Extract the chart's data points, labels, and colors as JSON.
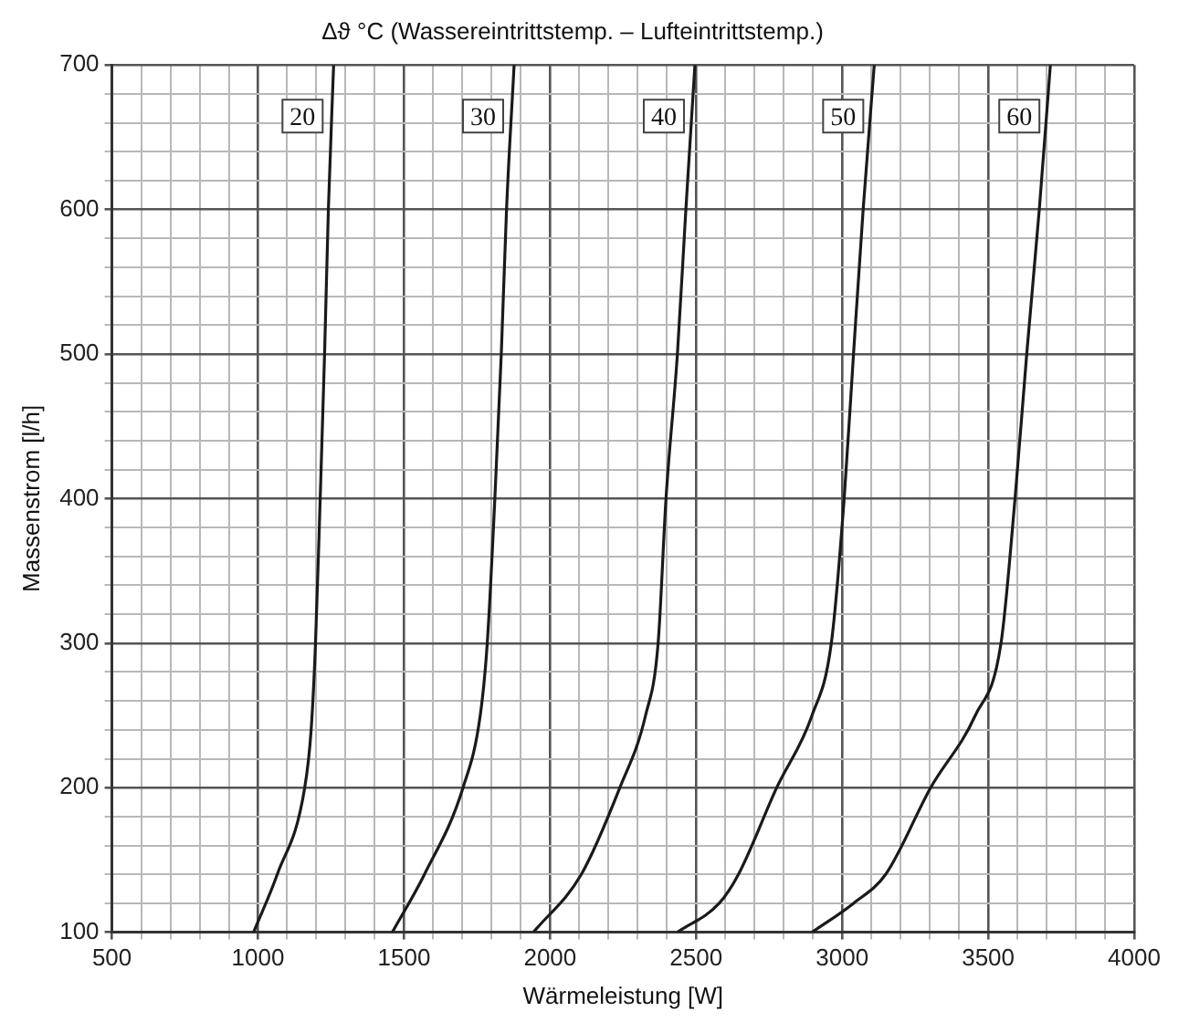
{
  "chart_data": {
    "type": "line",
    "title": "Δϑ °C (Wassereintrittstemp. – Lufteintrittstemp.)",
    "xlabel": "Wärmeleistung [W]",
    "ylabel": "Massenstrom [l/h]",
    "xlim": [
      500,
      4000
    ],
    "ylim": [
      100,
      700
    ],
    "xticks": [
      500,
      {
        "value": 600,
        "label": null
      },
      {
        "value": 700,
        "label": null
      },
      {
        "value": 800,
        "label": null
      },
      {
        "value": 900,
        "label": null
      },
      1000,
      {
        "value": 1100,
        "label": null
      },
      {
        "value": 1200,
        "label": null
      },
      {
        "value": 1300,
        "label": null
      },
      {
        "value": 1400,
        "label": null
      },
      1500,
      {
        "value": 1600,
        "label": null
      },
      {
        "value": 1700,
        "label": null
      },
      {
        "value": 1800,
        "label": null
      },
      {
        "value": 1900,
        "label": null
      },
      2000,
      {
        "value": 2100,
        "label": null
      },
      {
        "value": 2200,
        "label": null
      },
      {
        "value": 2300,
        "label": null
      },
      {
        "value": 2400,
        "label": null
      },
      2500,
      {
        "value": 2600,
        "label": null
      },
      {
        "value": 2700,
        "label": null
      },
      {
        "value": 2800,
        "label": null
      },
      {
        "value": 2900,
        "label": null
      },
      3000,
      {
        "value": 3100,
        "label": null
      },
      {
        "value": 3200,
        "label": null
      },
      {
        "value": 3300,
        "label": null
      },
      {
        "value": 3400,
        "label": null
      },
      3500,
      {
        "value": 3600,
        "label": null
      },
      {
        "value": 3700,
        "label": null
      },
      {
        "value": 3800,
        "label": null
      },
      {
        "value": 3900,
        "label": null
      },
      4000
    ],
    "yticks": [
      100,
      {
        "value": 120,
        "label": null
      },
      {
        "value": 140,
        "label": null
      },
      {
        "value": 160,
        "label": null
      },
      {
        "value": 180,
        "label": null
      },
      200,
      {
        "value": 220,
        "label": null
      },
      {
        "value": 240,
        "label": null
      },
      {
        "value": 260,
        "label": null
      },
      {
        "value": 280,
        "label": null
      },
      300,
      {
        "value": 320,
        "label": null
      },
      {
        "value": 340,
        "label": null
      },
      {
        "value": 360,
        "label": null
      },
      {
        "value": 380,
        "label": null
      },
      400,
      {
        "value": 420,
        "label": null
      },
      {
        "value": 440,
        "label": null
      },
      {
        "value": 460,
        "label": null
      },
      {
        "value": 480,
        "label": null
      },
      500,
      {
        "value": 520,
        "label": null
      },
      {
        "value": 540,
        "label": null
      },
      {
        "value": 560,
        "label": null
      },
      {
        "value": 580,
        "label": null
      },
      600,
      {
        "value": 620,
        "label": null
      },
      {
        "value": 640,
        "label": null
      },
      {
        "value": 660,
        "label": null
      },
      {
        "value": 680,
        "label": null
      },
      700
    ],
    "grid": true,
    "legend": false,
    "marker": "none",
    "line_style": "solid",
    "series": [
      {
        "name": "20",
        "color": "#1a1a1a",
        "x": [
          985,
          1066,
          1160,
          1182,
          1197,
          1213,
          1228,
          1241,
          1259
        ],
        "values": [
          100,
          140,
          200,
          240,
          300,
          400,
          500,
          600,
          700
        ]
      },
      {
        "name": "30",
        "color": "#1a1a1a",
        "x": [
          1460,
          1570,
          1702,
          1761,
          1785,
          1811,
          1833,
          1851,
          1877
        ],
        "values": [
          100,
          140,
          200,
          250,
          300,
          400,
          500,
          600,
          700
        ]
      },
      {
        "name": "40",
        "color": "#1a1a1a",
        "x": [
          1943,
          2107,
          2239,
          2327,
          2370,
          2397,
          2436,
          2465,
          2496
        ],
        "values": [
          100,
          140,
          200,
          250,
          300,
          400,
          500,
          600,
          700
        ]
      },
      {
        "name": "50",
        "color": "#1a1a1a",
        "x": [
          2436,
          2579,
          2645,
          2776,
          2897,
          2963,
          3007,
          3039,
          3072,
          3110
        ],
        "values": [
          100,
          120,
          140,
          200,
          250,
          300,
          400,
          500,
          600,
          700
        ]
      },
      {
        "name": "60",
        "color": "#1a1a1a",
        "x": [
          2897,
          3039,
          3149,
          3303,
          3456,
          3544,
          3592,
          3632,
          3675,
          3713
        ],
        "values": [
          100,
          120,
          140,
          200,
          250,
          300,
          400,
          500,
          600,
          700
        ]
      }
    ]
  }
}
